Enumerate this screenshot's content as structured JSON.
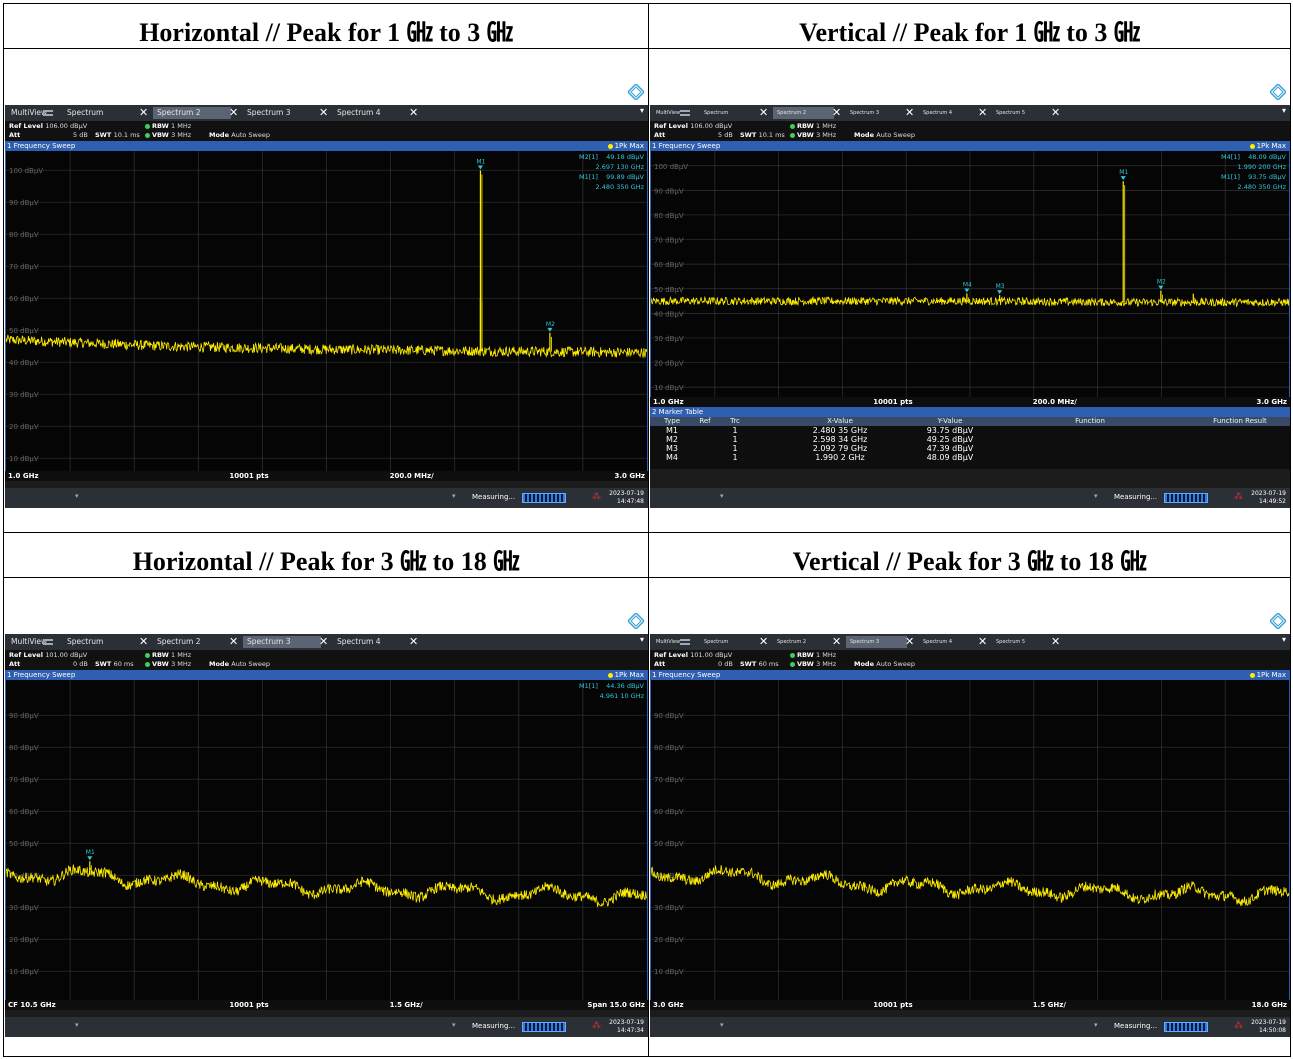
{
  "colors": {
    "trace": "#ffee00",
    "marker": "#2ec8d8",
    "header": "#2f5fb0",
    "background": "#050505"
  },
  "panels": [
    {
      "title": "Horizontal // Peak for 1 ㎓ to 3 ㎓",
      "tabs": [
        "MultiView",
        "Spectrum",
        "Spectrum 2",
        "Spectrum 3",
        "Spectrum 4"
      ],
      "active_tab": 2,
      "ref_level": "106.00 dBµV",
      "att": "5 dB",
      "swt": "10.1 ms",
      "rbw": "1 MHz",
      "vbw": "3 MHz",
      "mode": "Auto Sweep",
      "sweep_label": "1 Frequency Sweep",
      "trace_label": "1Pk Max",
      "marker_info": [
        {
          "name": "M2[1]",
          "value": "49.18 dBµV",
          "freq": "2.697 130 GHz"
        },
        {
          "name": "M1[1]",
          "value": "99.89 dBµV",
          "freq": "2.480 350 GHz"
        }
      ],
      "axis_left": "1.0 GHz",
      "axis_pts": "10001 pts",
      "axis_div": "200.0 MHz/",
      "axis_right": "3.0 GHz",
      "status_text": "Measuring...",
      "date": "2023-07-19",
      "time": "14:47:48",
      "table_title": "",
      "chart_data": {
        "type": "line",
        "x_unit": "GHz",
        "y_unit": "dBµV",
        "xlim": [
          1.0,
          3.0
        ],
        "ylim": [
          6,
          106
        ],
        "y_ticks": [
          "100 dBµV",
          "90 dBµV",
          "80 dBµV",
          "70 dBµV",
          "60 dBµV",
          "50 dBµV",
          "40 dBµV",
          "30 dBµV",
          "20 dBµV",
          "10 dBµV"
        ],
        "y_tick_values": [
          100,
          90,
          80,
          70,
          60,
          50,
          40,
          30,
          20,
          10
        ],
        "noise_floor": [
          [
            1.0,
            47
          ],
          [
            1.5,
            45
          ],
          [
            2.0,
            44
          ],
          [
            2.47,
            43.5
          ],
          [
            3.0,
            43
          ]
        ],
        "peaks": [
          [
            2.4803,
            99.89
          ],
          [
            2.4803,
            60
          ],
          [
            2.6971,
            49.18
          ]
        ],
        "markers": [
          {
            "label": "M1",
            "x": 2.4803,
            "y": 99.89
          },
          {
            "label": "M2",
            "x": 2.6971,
            "y": 49.18
          }
        ]
      }
    },
    {
      "title": "Vertical // Peak for 1 ㎓ to 3 ㎓",
      "tabs": [
        "MultiView",
        "Spectrum",
        "Spectrum 2",
        "Spectrum 3",
        "Spectrum 4",
        "Spectrum 5"
      ],
      "active_tab": 2,
      "ref_level": "106.00 dBµV",
      "att": "5 dB",
      "swt": "10.1 ms",
      "rbw": "1 MHz",
      "vbw": "3 MHz",
      "mode": "Auto Sweep",
      "sweep_label": "1 Frequency Sweep",
      "trace_label": "1Pk Max",
      "marker_info": [
        {
          "name": "M4[1]",
          "value": "48.09 dBµV",
          "freq": "1.990 200 GHz"
        },
        {
          "name": "M1[1]",
          "value": "93.75 dBµV",
          "freq": "2.480 350 GHz"
        }
      ],
      "axis_left": "1.0 GHz",
      "axis_pts": "10001 pts",
      "axis_div": "200.0 MHz/",
      "axis_right": "3.0 GHz",
      "status_text": "Measuring...",
      "date": "2023-07-19",
      "time": "14:49:52",
      "table_title": "2 Marker Table",
      "table_headers": [
        "Type",
        "Ref",
        "Trc",
        "X-Value",
        "Y-Value",
        "Function",
        "Function Result"
      ],
      "table_rows": [
        [
          "M1",
          "",
          "1",
          "2.480 35 GHz",
          "93.75 dBµV",
          "",
          ""
        ],
        [
          "M2",
          "",
          "1",
          "2.598 34 GHz",
          "49.25 dBµV",
          "",
          ""
        ],
        [
          "M3",
          "",
          "1",
          "2.092 79 GHz",
          "47.39 dBµV",
          "",
          ""
        ],
        [
          "M4",
          "",
          "1",
          "1.990 2 GHz",
          "48.09 dBµV",
          "",
          ""
        ]
      ],
      "chart_data": {
        "type": "line",
        "x_unit": "GHz",
        "y_unit": "dBµV",
        "xlim": [
          1.0,
          3.0
        ],
        "ylim": [
          6,
          106
        ],
        "y_ticks": [
          "100 dBµV",
          "90 dBµV",
          "80 dBµV",
          "70 dBµV",
          "60 dBµV",
          "50 dBµV",
          "40 dBµV",
          "30 dBµV",
          "20 dBµV",
          "10 dBµV"
        ],
        "y_tick_values": [
          100,
          90,
          80,
          70,
          60,
          50,
          40,
          30,
          20,
          10
        ],
        "noise_floor": [
          [
            1.0,
            45
          ],
          [
            1.5,
            45
          ],
          [
            2.0,
            45
          ],
          [
            2.5,
            44.5
          ],
          [
            3.0,
            44.5
          ]
        ],
        "peaks": [
          [
            1.9902,
            48.09
          ],
          [
            2.0928,
            47.39
          ],
          [
            2.4803,
            93.75
          ],
          [
            2.5983,
            49.25
          ],
          [
            2.7,
            48
          ]
        ],
        "markers": [
          {
            "label": "M1",
            "x": 2.4803,
            "y": 93.75
          },
          {
            "label": "M2",
            "x": 2.5983,
            "y": 49.25
          },
          {
            "label": "M3",
            "x": 2.0928,
            "y": 47.39
          },
          {
            "label": "M4",
            "x": 1.9902,
            "y": 48.09
          }
        ]
      }
    },
    {
      "title": "Horizontal // Peak for 3 ㎓ to 18 ㎓",
      "tabs": [
        "MultiView",
        "Spectrum",
        "Spectrum 2",
        "Spectrum 3",
        "Spectrum 4"
      ],
      "active_tab": 3,
      "ref_level": "101.00 dBµV",
      "att": "0 dB",
      "swt": "60 ms",
      "rbw": "1 MHz",
      "vbw": "3 MHz",
      "mode": "Auto Sweep",
      "sweep_label": "1 Frequency Sweep",
      "trace_label": "1Pk Max",
      "marker_info": [
        {
          "name": "M1[1]",
          "value": "44.36 dBµV",
          "freq": "4.961 10 GHz"
        }
      ],
      "axis_left": "CF 10.5 GHz",
      "axis_pts": "10001 pts",
      "axis_div": "1.5 GHz/",
      "axis_right": "Span 15.0 GHz",
      "status_text": "Measuring...",
      "date": "2023-07-19",
      "time": "14:47:34",
      "table_title": "",
      "chart_data": {
        "type": "line",
        "x_unit": "GHz",
        "y_unit": "dBµV",
        "xlim": [
          3.0,
          18.0
        ],
        "ylim": [
          1,
          101
        ],
        "y_ticks": [
          "90 dBµV",
          "80 dBµV",
          "70 dBµV",
          "60 dBµV",
          "50 dBµV",
          "40 dBµV",
          "30 dBµV",
          "20 dBµV",
          "10 dBµV"
        ],
        "y_tick_values": [
          90,
          80,
          70,
          60,
          50,
          40,
          30,
          20,
          10
        ],
        "noise_floor": [
          [
            3.0,
            40
          ],
          [
            5.0,
            40
          ],
          [
            8.0,
            37
          ],
          [
            10.5,
            36
          ],
          [
            13.0,
            35
          ],
          [
            16.0,
            34
          ],
          [
            18.0,
            33
          ]
        ],
        "peaks": [
          [
            4.9611,
            44.36
          ]
        ],
        "markers": [
          {
            "label": "M1",
            "x": 4.9611,
            "y": 44.36
          }
        ]
      }
    },
    {
      "title": "Vertical // Peak for 3 ㎓ to 18 ㎓",
      "tabs": [
        "MultiView",
        "Spectrum",
        "Spectrum 2",
        "Spectrum 3",
        "Spectrum 4",
        "Spectrum 5"
      ],
      "active_tab": 3,
      "ref_level": "101.00 dBµV",
      "att": "0 dB",
      "swt": "60 ms",
      "rbw": "1 MHz",
      "vbw": "3 MHz",
      "mode": "Auto Sweep",
      "sweep_label": "1 Frequency Sweep",
      "trace_label": "1Pk Max",
      "marker_info": [],
      "axis_left": "3.0 GHz",
      "axis_pts": "10001 pts",
      "axis_div": "1.5 GHz/",
      "axis_right": "18.0 GHz",
      "status_text": "Measuring...",
      "date": "2023-07-19",
      "time": "14:50:08",
      "table_title": "",
      "chart_data": {
        "type": "line",
        "x_unit": "GHz",
        "y_unit": "dBµV",
        "xlim": [
          3.0,
          18.0
        ],
        "ylim": [
          1,
          101
        ],
        "y_ticks": [
          "90 dBµV",
          "80 dBµV",
          "70 dBµV",
          "60 dBµV",
          "50 dBµV",
          "40 dBµV",
          "30 dBµV",
          "20 dBµV",
          "10 dBµV"
        ],
        "y_tick_values": [
          90,
          80,
          70,
          60,
          50,
          40,
          30,
          20,
          10
        ],
        "noise_floor": [
          [
            3.0,
            40
          ],
          [
            5.0,
            40
          ],
          [
            8.0,
            37
          ],
          [
            10.5,
            36
          ],
          [
            13.0,
            35
          ],
          [
            16.0,
            34
          ],
          [
            18.0,
            34
          ]
        ],
        "peaks": [],
        "markers": []
      }
    }
  ]
}
